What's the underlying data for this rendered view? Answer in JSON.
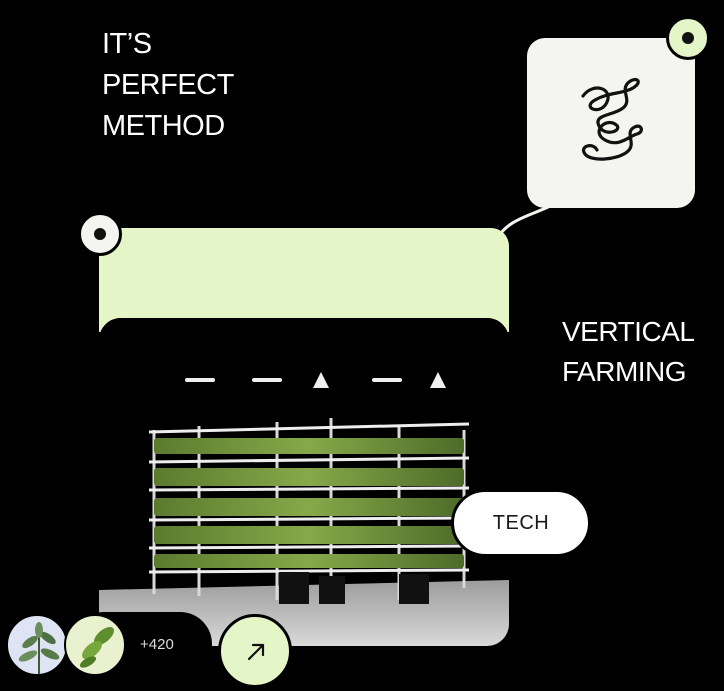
{
  "headline": {
    "line1": "IT’S",
    "line2": "PERFECT",
    "line3": "METHOD"
  },
  "side_title": {
    "line1": "VERTICAL",
    "line2": "FARMING"
  },
  "tag": {
    "label": "TECH"
  },
  "social": {
    "count_label": "+420"
  },
  "colors": {
    "background": "#000000",
    "accent_green": "#e4f5c8",
    "card_white": "#f4f4f1",
    "text": "#ffffff"
  },
  "icons": {
    "logo": "squiggle-logo-icon",
    "arrow": "arrow-up-right-icon",
    "pin": "pin-dot-icon"
  }
}
